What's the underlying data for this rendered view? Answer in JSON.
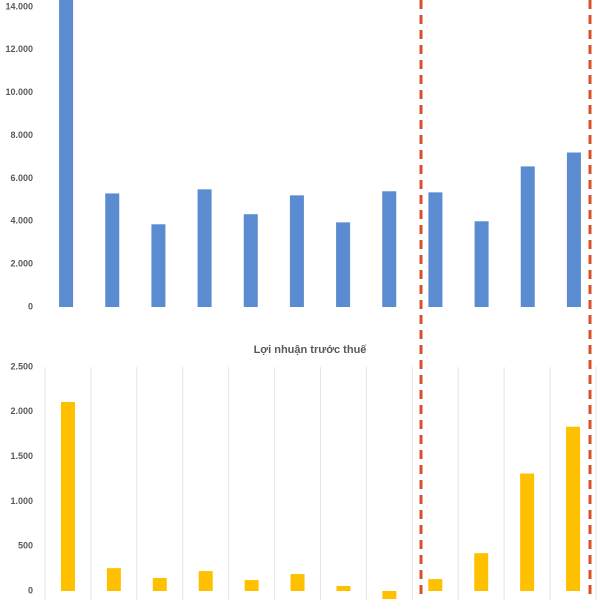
{
  "chart_data": [
    {
      "type": "bar",
      "categories": [
        null,
        null,
        null,
        null,
        null,
        null,
        null,
        null,
        null,
        null,
        null,
        null
      ],
      "values": [
        14400,
        5300,
        3860,
        5490,
        4330,
        5210,
        3950,
        5400,
        5350,
        4000,
        6560,
        7210
      ],
      "color": "#5b8bd0",
      "ylim": [
        0,
        14000
      ],
      "yticks": [
        0,
        {
          "value": 2000,
          "label": "2.000"
        },
        {
          "value": 4000,
          "label": "4.000"
        },
        {
          "value": 6000,
          "label": "6.000"
        },
        {
          "value": 8000,
          "label": "8.000"
        },
        {
          "value": 10000,
          "label": "10.000"
        },
        {
          "value": 12000,
          "label": "12.000"
        },
        {
          "value": 14000,
          "label": "14.000"
        }
      ],
      "grid": false
    },
    {
      "type": "bar",
      "title": "Lợi nhuận trước thuế",
      "categories": [
        null,
        null,
        null,
        null,
        null,
        null,
        null,
        null,
        null,
        null,
        null,
        null
      ],
      "values": [
        2110,
        255,
        145,
        222,
        122,
        189,
        56,
        -90,
        133,
        422,
        1311,
        1833
      ],
      "color": "#ffc000",
      "ylim": [
        0,
        2500
      ],
      "yticks": [
        0,
        500,
        {
          "value": 1000,
          "label": "1.000"
        },
        {
          "value": 1500,
          "label": "1.500"
        },
        {
          "value": 2000,
          "label": "2.000"
        },
        {
          "value": 2500,
          "label": "2.500"
        }
      ],
      "grid": true
    }
  ]
}
